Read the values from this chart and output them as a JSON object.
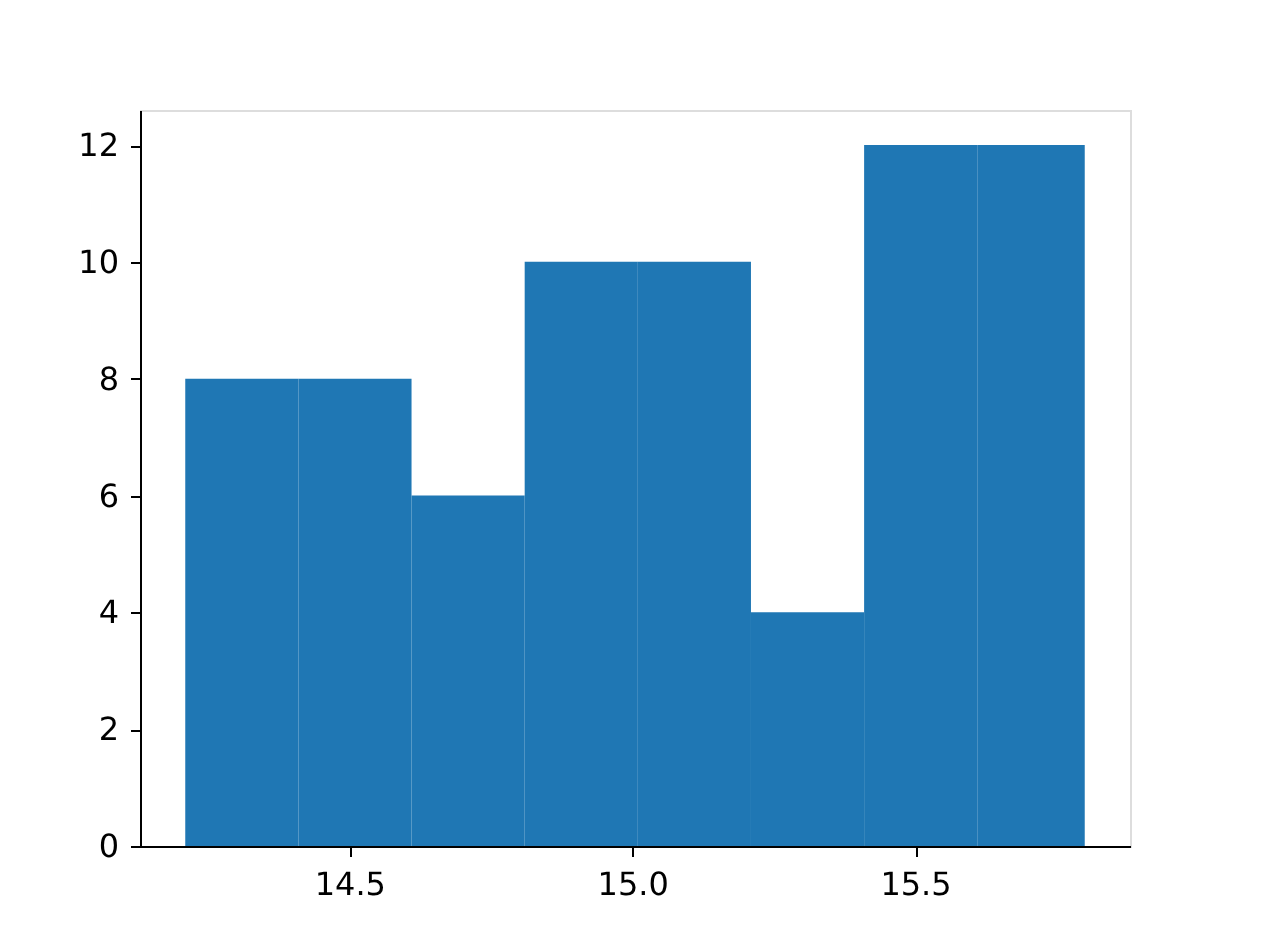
{
  "chart_data": {
    "type": "histogram",
    "bins": [
      14.21,
      14.41,
      14.61,
      14.81,
      15.01,
      15.21,
      15.41,
      15.61,
      15.8
    ],
    "values": [
      8,
      8,
      6,
      10,
      10,
      4,
      12,
      12
    ],
    "color": "#1f77b4",
    "xlim": [
      14.13,
      15.88
    ],
    "xticks": [
      {
        "value": 14.5,
        "label": "14.5"
      },
      {
        "value": 15.0,
        "label": "15.0"
      },
      {
        "value": 15.5,
        "label": "15.5"
      }
    ],
    "ylim": [
      0,
      12.6
    ],
    "yticks": [
      0,
      2,
      4,
      6,
      8,
      10,
      12
    ],
    "grid": false
  }
}
